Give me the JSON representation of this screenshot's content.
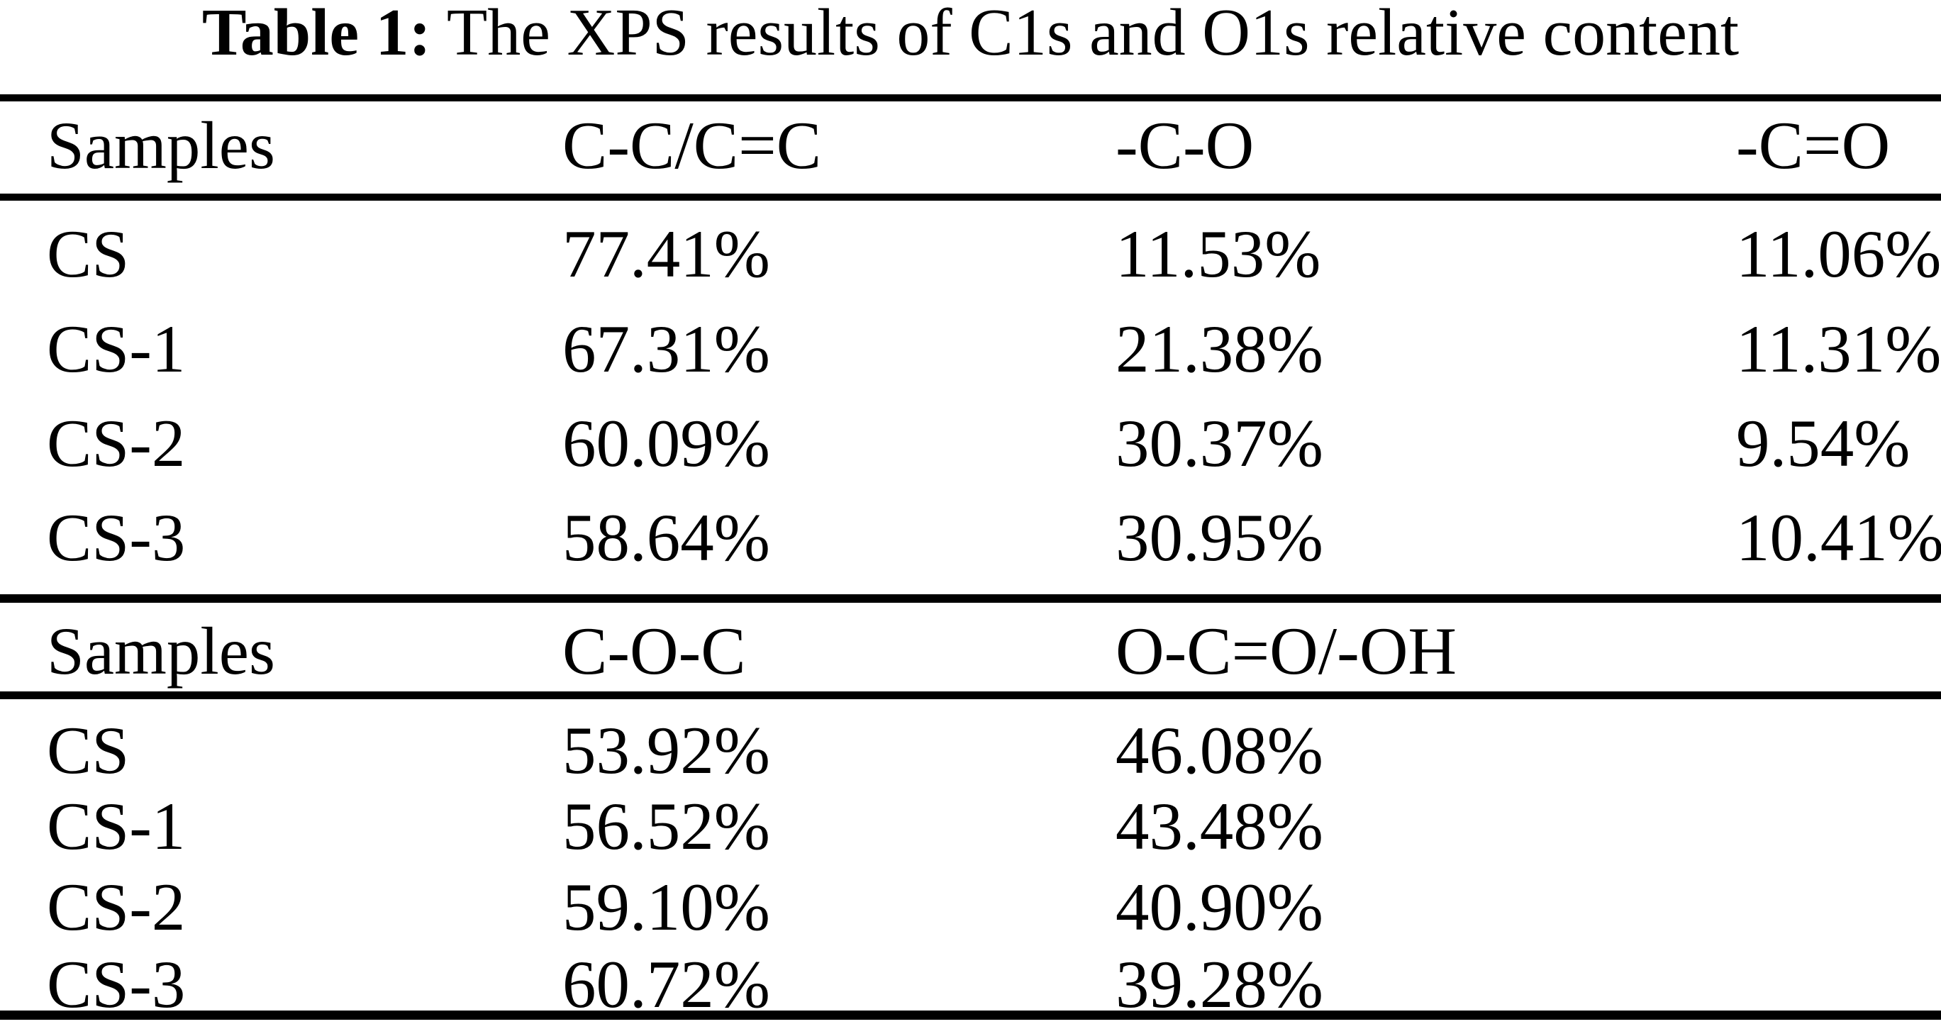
{
  "colors": {
    "background": "#ffffff",
    "text": "#000000",
    "rule": "#000000"
  },
  "title": {
    "label": "Table 1:",
    "text": "The XPS results of C1s and O1s relative content"
  },
  "table": {
    "sections": [
      {
        "headers": [
          "Samples",
          "C-C/C=C",
          "-C-O",
          "-C=O"
        ],
        "rows": [
          [
            "CS",
            "77.41%",
            "11.53%",
            "11.06%"
          ],
          [
            "CS-1",
            "67.31%",
            "21.38%",
            "11.31%"
          ],
          [
            "CS-2",
            "60.09%",
            "30.37%",
            "9.54%"
          ],
          [
            "CS-3",
            "58.64%",
            "30.95%",
            "10.41%"
          ]
        ]
      },
      {
        "headers": [
          "Samples",
          "C-O-C",
          "O-C=O/-OH"
        ],
        "rows": [
          [
            "CS",
            "53.92%",
            "46.08%"
          ],
          [
            "CS-1",
            "56.52%",
            "43.48%"
          ],
          [
            "CS-2",
            "59.10%",
            "40.90%"
          ],
          [
            "CS-3",
            "60.72%",
            "39.28%"
          ]
        ]
      }
    ]
  }
}
